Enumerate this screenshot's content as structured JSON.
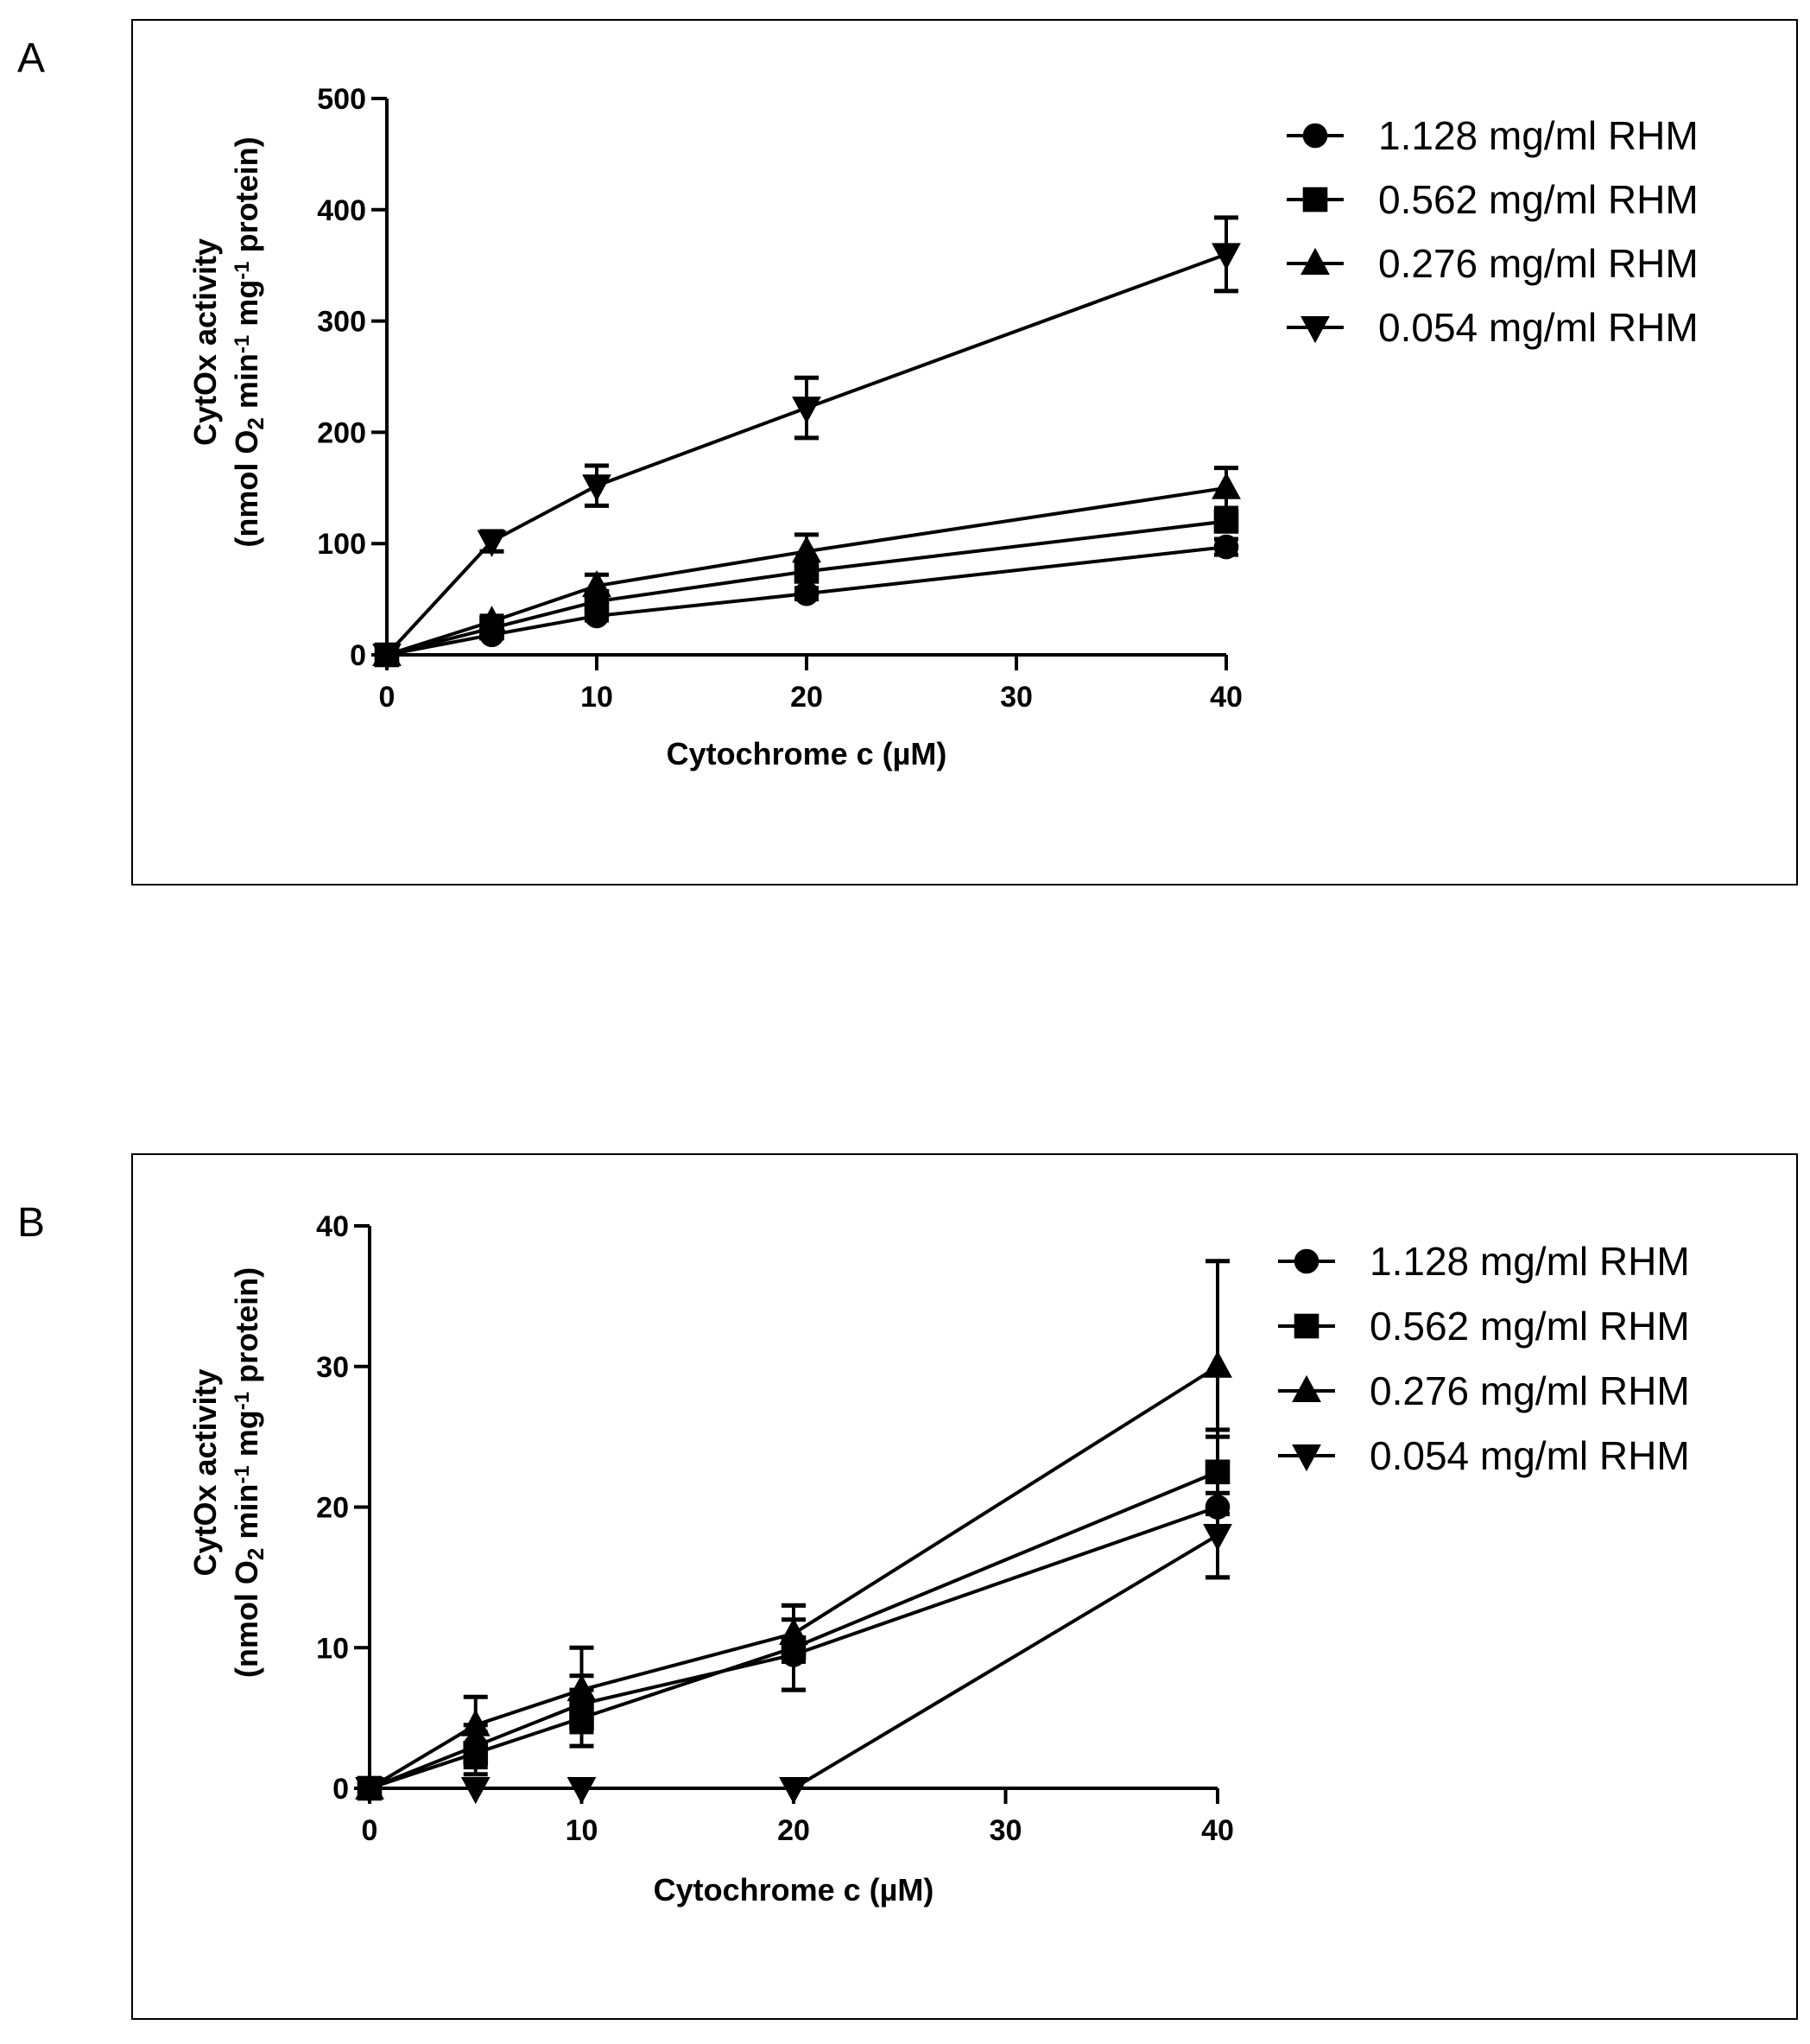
{
  "panels": [
    {
      "letter": "A"
    },
    {
      "letter": "B"
    }
  ],
  "chart_data": [
    {
      "type": "line",
      "panel": "A",
      "xlabel": "Cytochrome c (µM)",
      "ylabel_line1": "CytOx activity",
      "ylabel_line2": {
        "pre": "(nmol O",
        "sub": "2",
        "mid1": " min",
        "sup1": "-1",
        "mid2": " mg",
        "sup2": "-1",
        "post": "  protein)"
      },
      "x_ticks": [
        "0",
        "10",
        "20",
        "30",
        "40"
      ],
      "y_ticks": [
        "0",
        "100",
        "200",
        "300",
        "400",
        "500"
      ],
      "xlim": [
        0,
        40
      ],
      "ylim": [
        0,
        500
      ],
      "series": [
        {
          "name": "1.128 mg/ml RHM",
          "marker": "circle",
          "x": [
            0,
            5,
            10,
            20,
            40
          ],
          "y": [
            0,
            18,
            35,
            55,
            97
          ],
          "err": [
            2,
            3,
            4,
            5,
            7
          ]
        },
        {
          "name": "0.562 mg/ml RHM",
          "marker": "square",
          "x": [
            0,
            5,
            10,
            20,
            40
          ],
          "y": [
            0,
            24,
            48,
            75,
            120
          ],
          "err": [
            2,
            3,
            5,
            7,
            9
          ]
        },
        {
          "name": "0.276 mg/ml RHM",
          "marker": "triangle-up",
          "x": [
            0,
            5,
            10,
            20,
            40
          ],
          "y": [
            0,
            30,
            62,
            93,
            150
          ],
          "err": [
            2,
            5,
            10,
            15,
            18
          ]
        },
        {
          "name": "0.054 mg/ml RHM",
          "marker": "triangle-down",
          "x": [
            0,
            5,
            10,
            20,
            40
          ],
          "y": [
            0,
            102,
            152,
            222,
            360
          ],
          "err": [
            2,
            9,
            18,
            27,
            33
          ]
        }
      ]
    },
    {
      "type": "line",
      "panel": "B",
      "xlabel": "Cytochrome c (µM)",
      "ylabel_line1": "CytOx activity",
      "ylabel_line2": {
        "pre": "(nmol O",
        "sub": "2",
        "mid1": " min",
        "sup1": "-1",
        "mid2": " mg",
        "sup2": "-1",
        "post": "  protein)"
      },
      "x_ticks": [
        "0",
        "10",
        "20",
        "30",
        "40"
      ],
      "y_ticks": [
        "0",
        "10",
        "20",
        "30",
        "40"
      ],
      "xlim": [
        0,
        40
      ],
      "ylim": [
        0,
        40
      ],
      "series": [
        {
          "name": "1.128 mg/ml RHM",
          "marker": "circle",
          "x": [
            0,
            5,
            10,
            20,
            40
          ],
          "y": [
            0,
            3,
            6,
            9.5,
            20
          ],
          "err": [
            0.3,
            1.5,
            2,
            2.5,
            5
          ]
        },
        {
          "name": "0.562 mg/ml RHM",
          "marker": "square",
          "x": [
            0,
            5,
            10,
            20,
            40
          ],
          "y": [
            0,
            2.5,
            5,
            10,
            22.5
          ],
          "err": [
            0.3,
            1.5,
            2,
            3,
            3
          ]
        },
        {
          "name": "0.276 mg/ml RHM",
          "marker": "triangle-up",
          "x": [
            0,
            5,
            10,
            20,
            40
          ],
          "y": [
            0,
            4.5,
            7,
            11,
            30
          ],
          "err": [
            0.3,
            2,
            3,
            2,
            7.5
          ]
        },
        {
          "name": "0.054 mg/ml RHM",
          "marker": "triangle-down",
          "x": [
            0,
            5,
            10,
            20,
            40
          ],
          "y": [
            0,
            0,
            0,
            0,
            18
          ],
          "err": [
            0,
            0,
            0,
            0,
            3
          ]
        }
      ]
    }
  ]
}
